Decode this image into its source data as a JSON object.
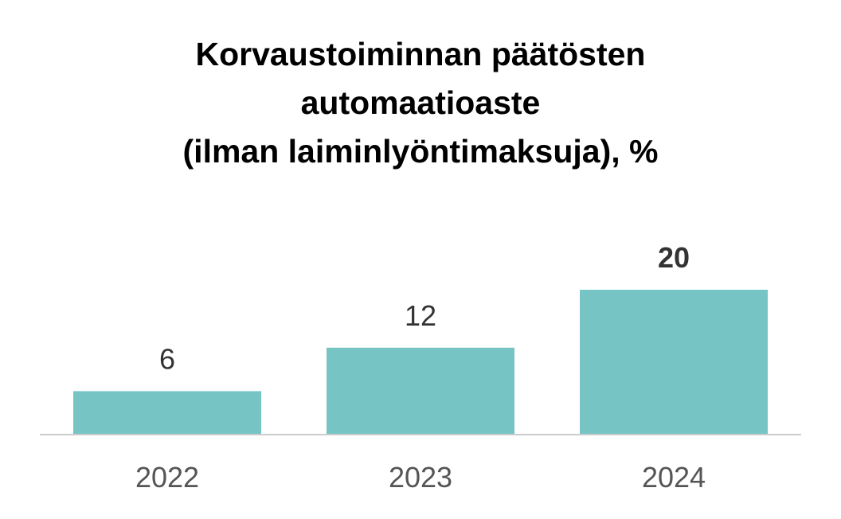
{
  "chart_data": {
    "type": "bar",
    "title_lines": [
      "Korvaustoiminnan päätösten",
      "automaatioaste",
      "(ilman laiminlyöntimaksuja), %"
    ],
    "categories": [
      "2022",
      "2023",
      "2024"
    ],
    "values": [
      6,
      12,
      20
    ],
    "value_labels": [
      "6",
      "12",
      "20"
    ],
    "highlight_index": 2,
    "ylim": [
      0,
      20
    ],
    "grid": false,
    "legend": "none",
    "bar_color": "#76c4c4",
    "axis_color": "#cccccc"
  }
}
